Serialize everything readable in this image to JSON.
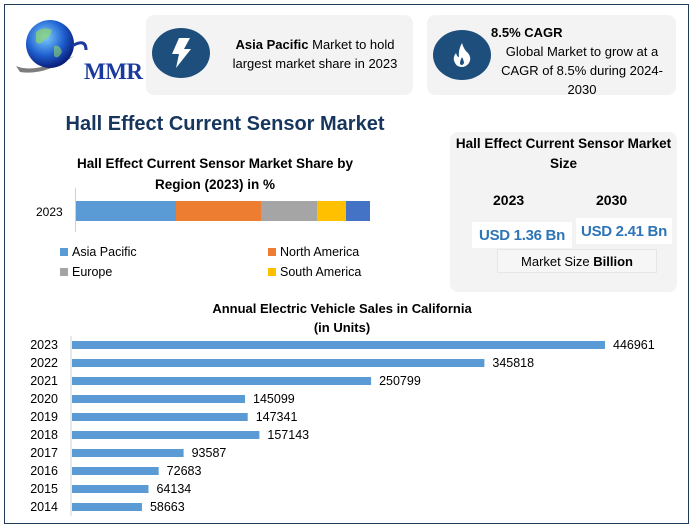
{
  "logo": {
    "text": "MMR",
    "icon": "globe-icon"
  },
  "highlights": [
    {
      "icon": "lightning-bolt-icon",
      "bold": "Asia Pacific",
      "text": " Market to hold largest market share in 2023"
    },
    {
      "icon": "flame-icon",
      "title": "8.5% CAGR",
      "text": "Global Market to grow at a CAGR of 8.5% during 2024-2030"
    }
  ],
  "main_title": "Hall Effect Current Sensor Market",
  "market_size": {
    "title": "Hall Effect Current Sensor Market Size",
    "years": [
      "2023",
      "2030"
    ],
    "values": [
      "USD 1.36 Bn",
      "USD 2.41 Bn"
    ],
    "footer_prefix": "Market Size ",
    "footer_bold": "Billion"
  },
  "colors": {
    "accent_dark": "#1e4f7c",
    "title_navy": "#17365d",
    "value_blue": "#2e75b6",
    "bar_blue": "#5b9bd5"
  },
  "chart_data": [
    {
      "type": "bar",
      "orientation": "horizontal-stacked",
      "title": "Hall Effect Current Sensor Market Share by Region (2023) in %",
      "categories": [
        "2023"
      ],
      "series": [
        {
          "name": "Asia Pacific",
          "values": [
            34
          ],
          "color": "#5b9bd5"
        },
        {
          "name": "North America",
          "values": [
            29
          ],
          "color": "#ed7d31"
        },
        {
          "name": "Europe",
          "values": [
            19
          ],
          "color": "#a5a5a5"
        },
        {
          "name": "South America",
          "values": [
            10
          ],
          "color": "#ffc000"
        },
        {
          "name": "",
          "values": [
            8
          ],
          "color": "#4472c4"
        }
      ],
      "legend": [
        "Asia Pacific",
        "North America",
        "Europe",
        "South America"
      ],
      "legend_position": "bottom",
      "xlim": [
        0,
        100
      ],
      "grid": false
    },
    {
      "type": "bar",
      "orientation": "horizontal",
      "title": "Annual Electric Vehicle Sales in California",
      "subtitle": "(in Units)",
      "categories": [
        "2023",
        "2022",
        "2021",
        "2020",
        "2019",
        "2018",
        "2017",
        "2016",
        "2015",
        "2014"
      ],
      "values": [
        446961,
        345818,
        250799,
        145099,
        147341,
        157143,
        93587,
        72683,
        64134,
        58663
      ],
      "labels": [
        "446961",
        "345818",
        "250799",
        "145099",
        "147341",
        "157143",
        "93587",
        "72683",
        "64134",
        "58663"
      ],
      "color": "#5b9bd5",
      "xlim": [
        0,
        500000
      ],
      "grid": false
    }
  ]
}
